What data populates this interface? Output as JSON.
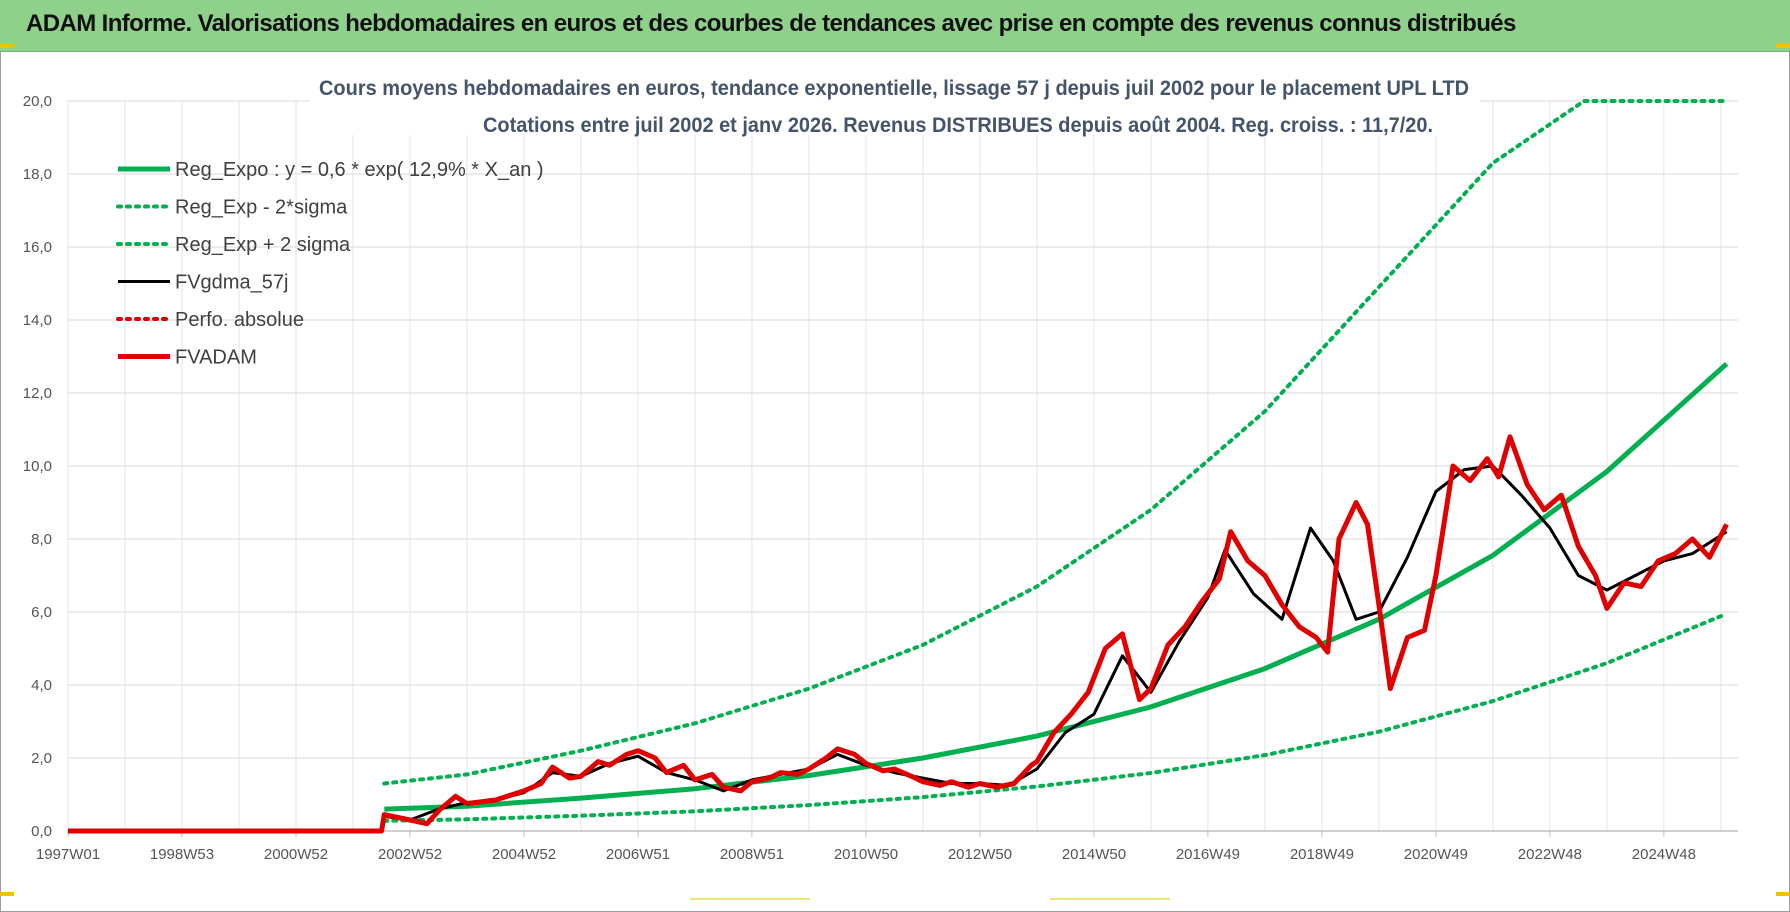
{
  "header": {
    "title": "ADAM Informe. Valorisations hebdomadaires en euros et des courbes de tendances avec prise en compte des revenus connus distribués"
  },
  "chart_data": {
    "type": "line",
    "title_line1": "Cours moyens hebdomadaires en euros, tendance exponentielle, lissage 57 j depuis juil 2002 pour le placement UPL LTD",
    "title_line2": "Cotations entre juil 2002 et janv 2026. Revenus DISTRIBUES depuis août 2004.  Reg. croiss. : 11,7/20.",
    "x_tick_labels": [
      "1997W01",
      "1998W53",
      "2000W52",
      "2002W52",
      "2004W52",
      "2006W51",
      "2008W51",
      "2010W50",
      "2012W50",
      "2014W50",
      "2016W49",
      "2018W49",
      "2020W49",
      "2022W48",
      "2024W48"
    ],
    "x_tick_years": [
      1997.0,
      1999.0,
      2001.0,
      2003.0,
      2005.0,
      2007.0,
      2009.0,
      2011.0,
      2013.0,
      2015.0,
      2017.0,
      2019.0,
      2021.0,
      2023.0,
      2025.0
    ],
    "y_tick_labels": [
      "0,0",
      "2,0",
      "4,0",
      "6,0",
      "8,0",
      "10,0",
      "12,0",
      "14,0",
      "16,0",
      "18,0",
      "20,0"
    ],
    "xlim": [
      1997.0,
      2026.3
    ],
    "ylim": [
      0,
      20
    ],
    "grid": true,
    "legend_position": "top-left",
    "series": [
      {
        "name": "Reg_Expo : y = 0,6 * exp( 12,9% *  X_an )",
        "style": "solid-thick",
        "color": "#00b050",
        "x": [
          2002.55,
          2004,
          2006,
          2008,
          2010,
          2012,
          2014,
          2016,
          2018,
          2020,
          2022,
          2024,
          2026.1
        ],
        "values": [
          0.6,
          0.68,
          0.9,
          1.16,
          1.52,
          2.0,
          2.6,
          3.4,
          4.45,
          5.8,
          7.55,
          9.85,
          12.8
        ]
      },
      {
        "name": "Reg_Exp - 2*sigma",
        "style": "dotted",
        "color": "#00b050",
        "x": [
          2002.55,
          2004,
          2006,
          2008,
          2010,
          2012,
          2014,
          2016,
          2018,
          2020,
          2022,
          2024,
          2026.1
        ],
        "values": [
          0.28,
          0.32,
          0.42,
          0.54,
          0.71,
          0.93,
          1.22,
          1.59,
          2.08,
          2.72,
          3.56,
          4.6,
          5.95
        ]
      },
      {
        "name": "Reg_Exp + 2 sigma",
        "style": "dotted",
        "color": "#00b050",
        "x": [
          2002.55,
          2004,
          2006,
          2008,
          2010,
          2012,
          2014,
          2016,
          2018,
          2020,
          2022,
          2023.6,
          2026.1
        ],
        "values": [
          1.3,
          1.55,
          2.2,
          2.95,
          3.9,
          5.1,
          6.7,
          8.8,
          11.5,
          14.9,
          18.3,
          20.0,
          20.0
        ]
      },
      {
        "name": "FVgdma_57j",
        "style": "solid",
        "color": "#000000",
        "x": [
          2002.55,
          2003,
          2003.5,
          2004,
          2004.5,
          2005,
          2005.5,
          2006,
          2006.5,
          2007,
          2007.5,
          2008,
          2008.5,
          2009,
          2009.5,
          2010,
          2010.5,
          2011,
          2011.5,
          2012,
          2012.5,
          2013,
          2013.5,
          2014,
          2014.5,
          2015,
          2015.5,
          2016,
          2016.5,
          2017,
          2017.3,
          2017.8,
          2018.3,
          2018.8,
          2019.2,
          2019.6,
          2020,
          2020.5,
          2021,
          2021.5,
          2022,
          2022.5,
          2023,
          2023.5,
          2024,
          2024.5,
          2025,
          2025.5,
          2026.1
        ],
        "values": [
          0.4,
          0.3,
          0.6,
          0.78,
          0.85,
          1.05,
          1.6,
          1.5,
          1.85,
          2.05,
          1.6,
          1.4,
          1.1,
          1.4,
          1.55,
          1.7,
          2.1,
          1.8,
          1.6,
          1.45,
          1.3,
          1.3,
          1.25,
          1.7,
          2.7,
          3.2,
          4.8,
          3.8,
          5.2,
          6.4,
          7.7,
          6.5,
          5.8,
          8.3,
          7.4,
          5.8,
          6.0,
          7.5,
          9.3,
          9.9,
          10.0,
          9.2,
          8.3,
          7.0,
          6.6,
          7.0,
          7.4,
          7.6,
          8.2
        ]
      },
      {
        "name": "Perfo. absolue",
        "style": "dotted",
        "color": "#e00000",
        "x": [],
        "values": []
      },
      {
        "name": "FVADAM",
        "style": "solid-thick",
        "color": "#e00000",
        "x": [
          1997.0,
          2002.5,
          2002.55,
          2003,
          2003.3,
          2003.5,
          2003.8,
          2004,
          2004.5,
          2005,
          2005.3,
          2005.5,
          2005.8,
          2006,
          2006.3,
          2006.5,
          2006.8,
          2007,
          2007.3,
          2007.5,
          2007.8,
          2008,
          2008.3,
          2008.5,
          2008.8,
          2009,
          2009.3,
          2009.5,
          2009.8,
          2010,
          2010.3,
          2010.5,
          2010.8,
          2011,
          2011.3,
          2011.5,
          2011.8,
          2012,
          2012.3,
          2012.5,
          2012.8,
          2013,
          2013.3,
          2013.6,
          2013.9,
          2014,
          2014.3,
          2014.6,
          2014.9,
          2015.2,
          2015.5,
          2015.8,
          2016,
          2016.3,
          2016.6,
          2016.9,
          2017.2,
          2017.4,
          2017.7,
          2018,
          2018.3,
          2018.6,
          2018.9,
          2019.1,
          2019.3,
          2019.6,
          2019.8,
          2020,
          2020.2,
          2020.5,
          2020.8,
          2021,
          2021.3,
          2021.6,
          2021.9,
          2022.1,
          2022.3,
          2022.6,
          2022.9,
          2023.2,
          2023.5,
          2023.8,
          2024,
          2024.3,
          2024.6,
          2024.9,
          2025.2,
          2025.5,
          2025.8,
          2026.1
        ],
        "values": [
          0.0,
          0.0,
          0.45,
          0.3,
          0.2,
          0.55,
          0.95,
          0.75,
          0.85,
          1.1,
          1.3,
          1.75,
          1.45,
          1.5,
          1.9,
          1.8,
          2.1,
          2.2,
          2.0,
          1.6,
          1.8,
          1.4,
          1.55,
          1.2,
          1.1,
          1.35,
          1.45,
          1.6,
          1.55,
          1.7,
          2.0,
          2.25,
          2.1,
          1.85,
          1.65,
          1.7,
          1.5,
          1.35,
          1.25,
          1.35,
          1.2,
          1.3,
          1.2,
          1.3,
          1.8,
          1.9,
          2.7,
          3.2,
          3.8,
          5.0,
          5.4,
          3.6,
          3.9,
          5.1,
          5.6,
          6.3,
          6.9,
          8.2,
          7.4,
          7.0,
          6.2,
          5.6,
          5.3,
          4.9,
          8.0,
          9.0,
          8.4,
          6.2,
          3.9,
          5.3,
          5.5,
          7.0,
          10.0,
          9.6,
          10.2,
          9.7,
          10.8,
          9.5,
          8.8,
          9.2,
          7.8,
          7.0,
          6.1,
          6.8,
          6.7,
          7.4,
          7.6,
          8.0,
          7.5,
          8.4
        ]
      }
    ]
  }
}
